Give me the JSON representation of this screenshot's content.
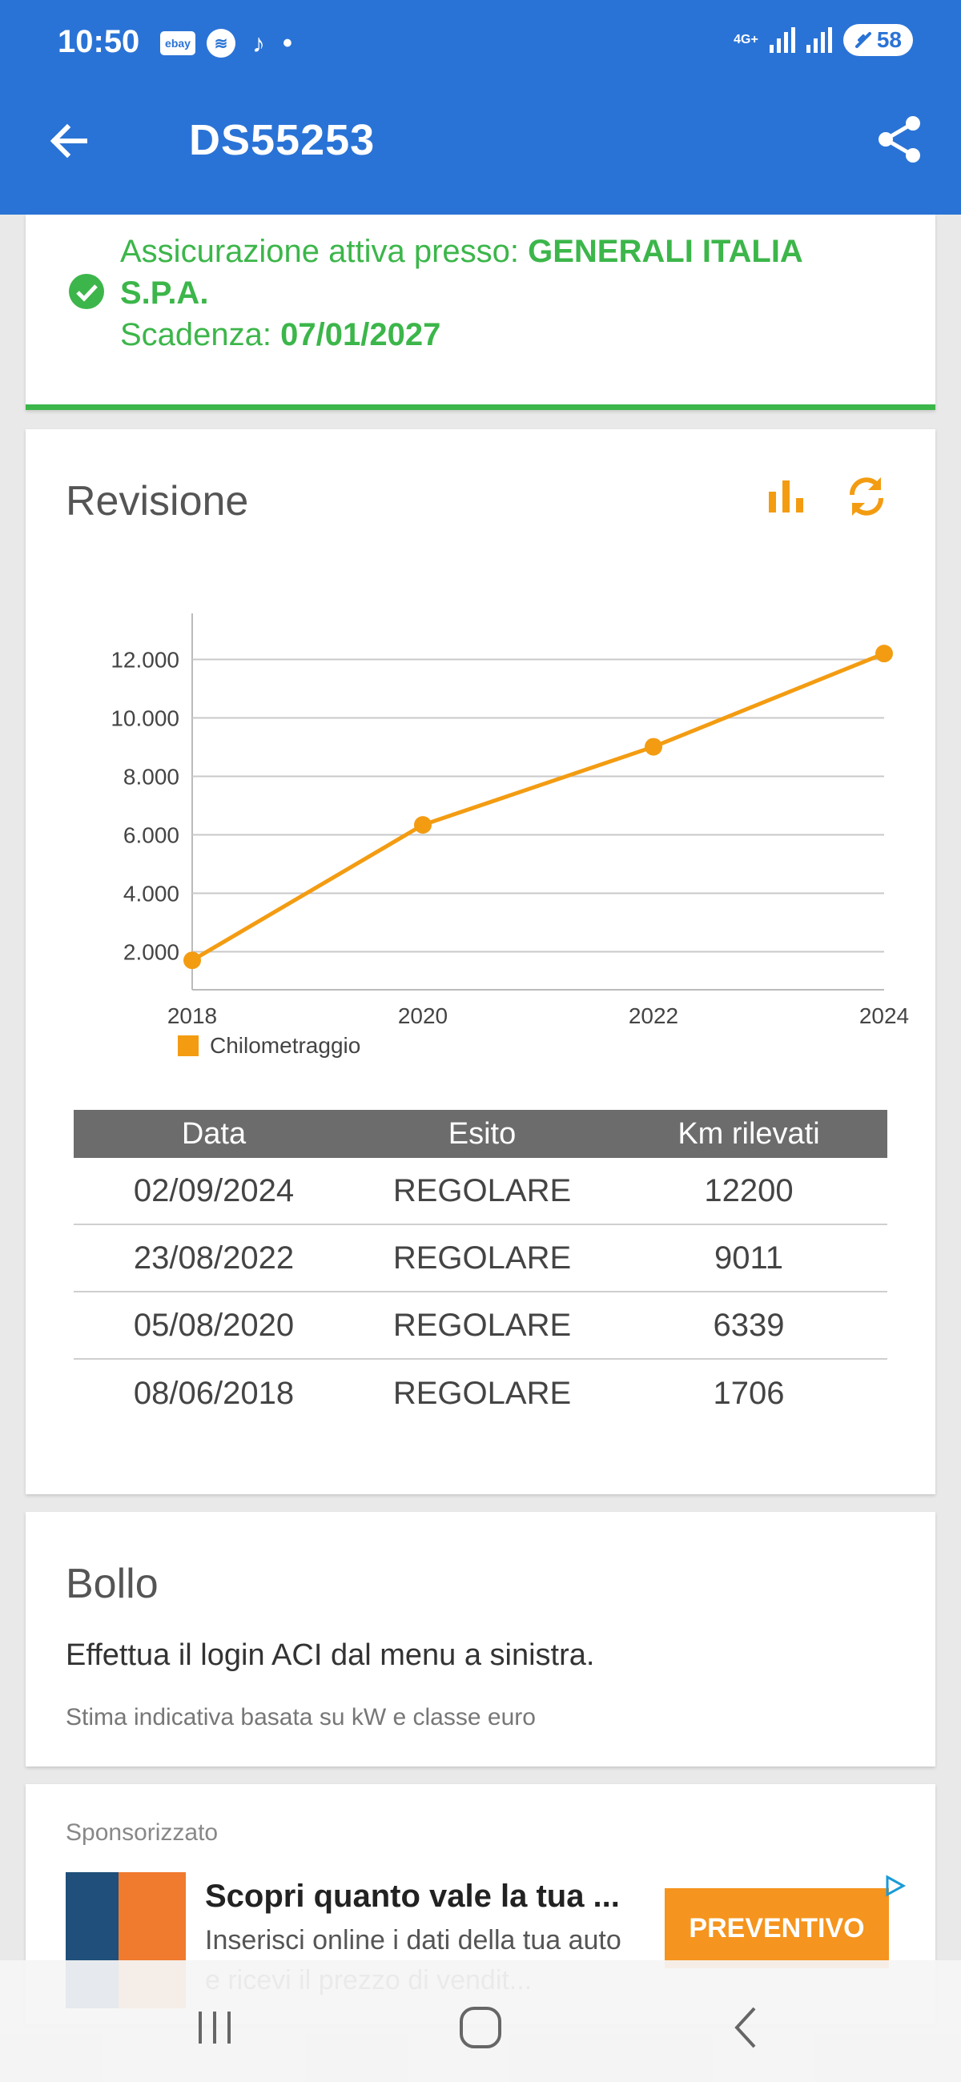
{
  "status_bar": {
    "time": "10:50",
    "notifications": [
      "ebay-icon",
      "messenger-icon",
      "tiktok-icon",
      "dot"
    ],
    "ebay_label": "ebay",
    "network": "4G+",
    "battery": "58"
  },
  "app_bar": {
    "title": "DS55253",
    "back_icon": "arrow-left-icon",
    "share_icon": "share-icon"
  },
  "insurance": {
    "prefix": "Assicurazione attiva presso: ",
    "company": "GENERALI ITALIA S.P.A.",
    "expiry_label": "Scadenza: ",
    "expiry_date": "07/01/2027",
    "status_color": "#3cb64a"
  },
  "revision": {
    "title": "Revisione",
    "actions": [
      "bar-chart-icon",
      "refresh-icon"
    ],
    "legend": "Chilometraggio",
    "table": {
      "headers": [
        "Data",
        "Esito",
        "Km rilevati"
      ],
      "rows": [
        [
          "02/09/2024",
          "REGOLARE",
          "12200"
        ],
        [
          "23/08/2022",
          "REGOLARE",
          "9011"
        ],
        [
          "05/08/2020",
          "REGOLARE",
          "6339"
        ],
        [
          "08/06/2018",
          "REGOLARE",
          "1706"
        ]
      ]
    }
  },
  "chart_data": {
    "type": "line",
    "x": [
      2018,
      2020,
      2022,
      2024
    ],
    "series": [
      {
        "name": "Chilometraggio",
        "values": [
          1706,
          6339,
          9011,
          12200
        ]
      }
    ],
    "x_ticks": [
      "2018",
      "2020",
      "2022",
      "2024"
    ],
    "y_ticks": [
      "2.000",
      "4.000",
      "6.000",
      "8.000",
      "10.000",
      "12.000"
    ],
    "ylim": [
      700,
      13300
    ],
    "grid": true,
    "legend_position": "bottom-left",
    "color": "#f39c12"
  },
  "bollo": {
    "title": "Bollo",
    "message": "Effettua il login ACI dal menu a sinistra.",
    "note": "Stima indicativa basata su kW e classe euro"
  },
  "ad": {
    "label": "Sponsorizzato",
    "title": "Scopri quanto vale la tua ...",
    "description": "Inserisci online i dati della tua auto e ricevi il prezzo di vendit...",
    "button": "PREVENTIVO"
  },
  "navbar": {
    "buttons": [
      "recent-apps-icon",
      "home-icon",
      "back-icon"
    ]
  }
}
